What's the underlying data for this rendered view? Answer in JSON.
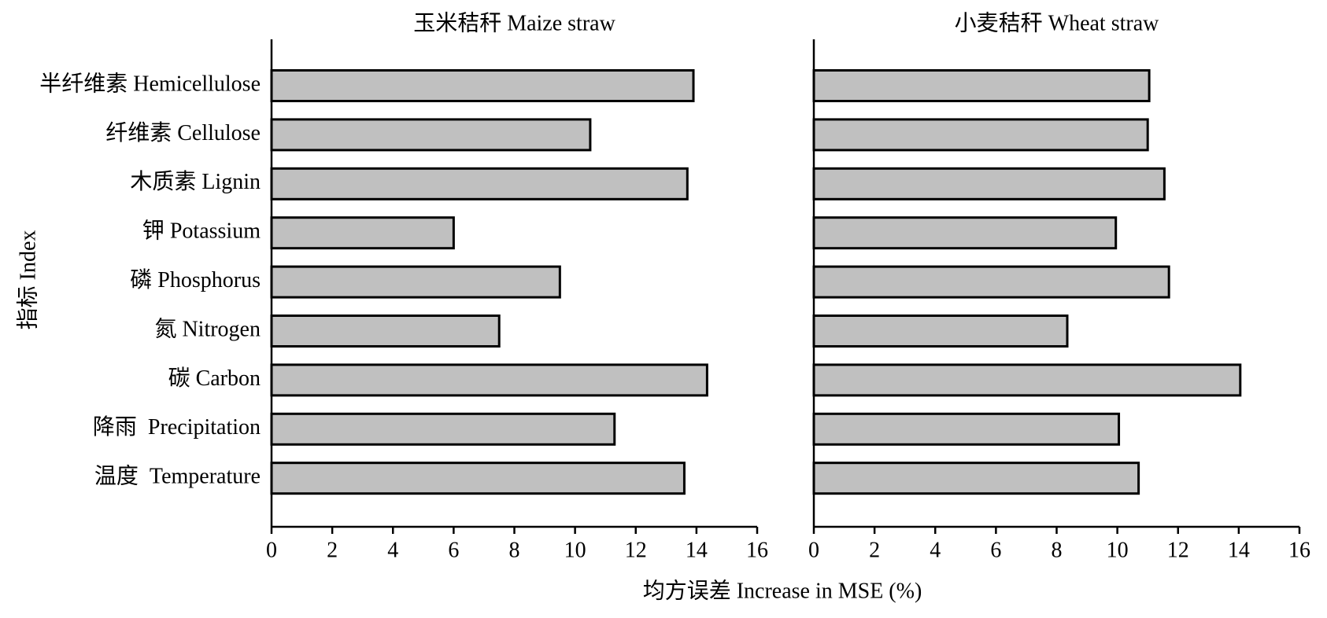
{
  "xlabel": "均方误差 Increase in MSE (%)",
  "ylabel": "指标 Index",
  "chart_data": [
    {
      "type": "barh",
      "title": "玉米秸秆 Maize straw",
      "categories": [
        "半纤维素 Hemicellulose",
        "纤维素 Cellulose",
        "木质素 Lignin",
        "钾 Potassium",
        "磷 Phosphorus",
        "氮 Nitrogen",
        "碳 Carbon",
        "降雨  Precipitation",
        "温度  Temperature"
      ],
      "values": [
        13.9,
        10.5,
        13.7,
        6.0,
        9.5,
        7.5,
        14.35,
        11.3,
        13.6
      ],
      "color": "#c0c0c0",
      "xlim": [
        0,
        16
      ],
      "xticks": [
        0,
        2,
        4,
        6,
        8,
        10,
        12,
        14,
        16
      ],
      "grid": false
    },
    {
      "type": "barh",
      "title": "小麦秸秆 Wheat straw",
      "categories": [
        null,
        null,
        null,
        null,
        null,
        null,
        null,
        null,
        null
      ],
      "values": [
        11.05,
        11.0,
        11.55,
        9.95,
        11.7,
        8.35,
        14.05,
        10.05,
        10.7
      ],
      "color": "#c0c0c0",
      "xlim": [
        0,
        16
      ],
      "xticks": [
        0,
        2,
        4,
        6,
        8,
        10,
        12,
        14,
        16
      ],
      "grid": false
    }
  ]
}
